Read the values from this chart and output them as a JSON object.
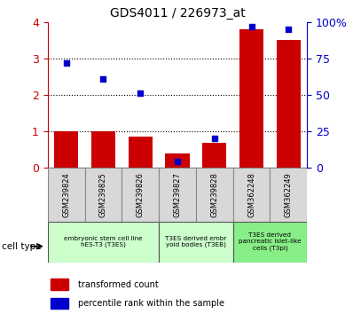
{
  "title": "GDS4011 / 226973_at",
  "samples": [
    "GSM239824",
    "GSM239825",
    "GSM239826",
    "GSM239827",
    "GSM239828",
    "GSM362248",
    "GSM362249"
  ],
  "transformed_count": [
    1.0,
    1.0,
    0.85,
    0.4,
    0.7,
    3.8,
    3.5
  ],
  "percentile_rank_pct": [
    72,
    61,
    51,
    4.5,
    20.5,
    97,
    95
  ],
  "bar_color": "#cc0000",
  "dot_color": "#0000cc",
  "ylim_left": [
    0,
    4
  ],
  "yticks_left": [
    0,
    1,
    2,
    3,
    4
  ],
  "yticks_right": [
    0,
    25,
    50,
    75,
    100
  ],
  "yticklabels_right": [
    "0",
    "25",
    "50",
    "75",
    "100%"
  ],
  "groups": [
    {
      "label": "embryonic stem cell line\nhES-T3 (T3ES)",
      "start": 0,
      "end": 3,
      "color": "#ccffcc"
    },
    {
      "label": "T3ES derived embr\nyoid bodies (T3EB)",
      "start": 3,
      "end": 5,
      "color": "#ccffcc"
    },
    {
      "label": "T3ES derived\npancreatic islet-like\ncells (T3pi)",
      "start": 5,
      "end": 7,
      "color": "#88ee88"
    }
  ],
  "cell_type_label": "cell type",
  "legend_bar": "transformed count",
  "legend_dot": "percentile rank within the sample",
  "tick_color_left": "#cc0000",
  "tick_color_right": "#0000cc",
  "sample_box_color": "#d8d8d8",
  "sample_box_edge": "#888888"
}
